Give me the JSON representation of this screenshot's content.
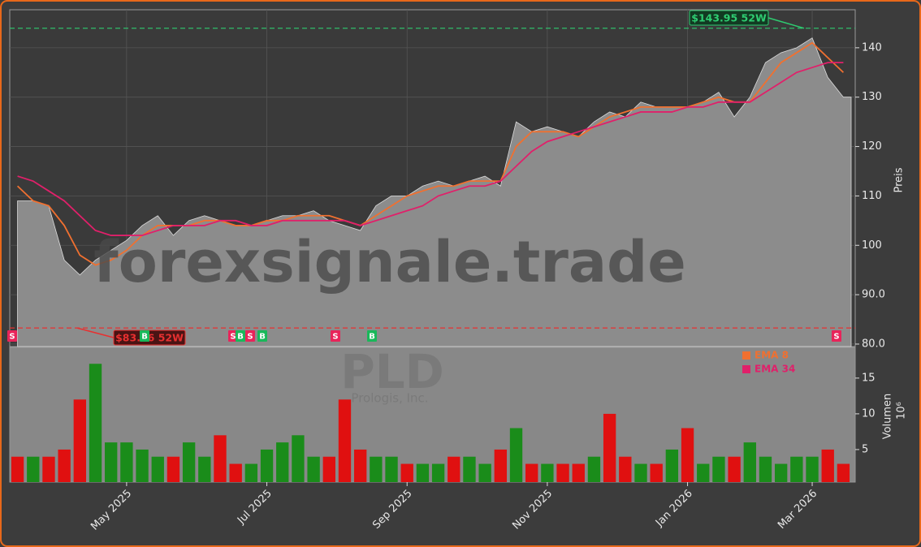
{
  "chart_data": [
    {
      "type": "area",
      "watermark": "forexsignale.trade",
      "y_label": "Preis",
      "ylim": [
        79.5,
        147.7
      ],
      "yticks": [
        {
          "value": 80,
          "label": "80.0"
        },
        {
          "value": 90,
          "label": "90.0"
        },
        100,
        110,
        120,
        130,
        140
      ],
      "grid": true,
      "series": [
        {
          "color": "#8c8c8c",
          "values": [
            109,
            109,
            108,
            97,
            94,
            97,
            99,
            101,
            104,
            106,
            102,
            105,
            106,
            105,
            104,
            104,
            105,
            106,
            106,
            107,
            105,
            104,
            103,
            108,
            110,
            110,
            112,
            113,
            112,
            113,
            114,
            112,
            125,
            123,
            124,
            123,
            122,
            125,
            127,
            126,
            129,
            128,
            128,
            128,
            129,
            131,
            126,
            130,
            137,
            139,
            140,
            142,
            134,
            130
          ]
        },
        {
          "name": "EMA 8",
          "color": "#f07030",
          "values": [
            112,
            109,
            108,
            104,
            98,
            96,
            97,
            99,
            102,
            104,
            104,
            104,
            105,
            105,
            104,
            104,
            105,
            105,
            106,
            106,
            106,
            105,
            104,
            106,
            108,
            110,
            111,
            112,
            112,
            113,
            113,
            113,
            120,
            123,
            123,
            123,
            122,
            124,
            126,
            127,
            128,
            128,
            128,
            128,
            129,
            130,
            129,
            129,
            133,
            137,
            139,
            141,
            138,
            135
          ]
        },
        {
          "name": "EMA 34",
          "color": "#e0206a",
          "values": [
            114,
            113,
            111,
            109,
            106,
            103,
            102,
            102,
            102,
            103,
            104,
            104,
            104,
            105,
            105,
            104,
            104,
            105,
            105,
            105,
            105,
            105,
            104,
            105,
            106,
            107,
            108,
            110,
            111,
            112,
            112,
            113,
            116,
            119,
            121,
            122,
            123,
            124,
            125,
            126,
            127,
            127,
            127,
            128,
            128,
            129,
            129,
            129,
            131,
            133,
            135,
            136,
            137,
            137
          ]
        }
      ],
      "annotations": [
        {
          "text": "$143.95 52W",
          "value": 143.95,
          "color": "#2ecc71"
        },
        {
          "text": "$83.26 52W",
          "value": 83.26,
          "color": "#e83030"
        }
      ],
      "signals": [
        "S",
        "B",
        "S",
        "B",
        "S",
        "B",
        "S",
        "B",
        "S"
      ]
    },
    {
      "type": "bar",
      "watermark": "PLD",
      "subtitle": "Prologis, Inc.",
      "y_label": "Volumen",
      "y_unit": "10⁶",
      "ylim": [
        0.45,
        19.3
      ],
      "yticks": [
        5,
        10,
        15
      ],
      "categories": [
        null,
        null,
        null,
        null,
        null,
        null,
        null,
        "May 2025",
        null,
        null,
        null,
        null,
        null,
        null,
        null,
        null,
        "Jul 2025",
        null,
        null,
        null,
        null,
        null,
        null,
        null,
        null,
        "Sep 2025",
        null,
        null,
        null,
        null,
        null,
        null,
        null,
        null,
        "Nov 2025",
        null,
        null,
        null,
        null,
        null,
        null,
        null,
        null,
        "Jan 2026",
        null,
        null,
        null,
        null,
        null,
        null,
        null,
        "Mar 2026",
        null,
        null
      ],
      "values": [
        4,
        4,
        4,
        5,
        12,
        17,
        6,
        6,
        5,
        4,
        4,
        6,
        4,
        7,
        3,
        3,
        5,
        6,
        7,
        4,
        4,
        12,
        5,
        4,
        4,
        3,
        3,
        3,
        4,
        4,
        3,
        5,
        8,
        3,
        3,
        3,
        3,
        4,
        10,
        4,
        3,
        3,
        5,
        8,
        3,
        4,
        4,
        6,
        4,
        3,
        4,
        4,
        5,
        3
      ],
      "colors": [
        "#e01010",
        "#1a8c1a",
        "#e01010",
        "#e01010",
        "#e01010",
        "#1a8c1a",
        "#1a8c1a",
        "#1a8c1a",
        "#1a8c1a",
        "#1a8c1a",
        "#e01010",
        "#1a8c1a",
        "#1a8c1a",
        "#e01010",
        "#e01010",
        "#1a8c1a",
        "#1a8c1a",
        "#1a8c1a",
        "#1a8c1a",
        "#1a8c1a",
        "#e01010",
        "#e01010",
        "#e01010",
        "#1a8c1a",
        "#1a8c1a",
        "#e01010",
        "#1a8c1a",
        "#1a8c1a",
        "#e01010",
        "#1a8c1a",
        "#1a8c1a",
        "#e01010",
        "#1a8c1a",
        "#e01010",
        "#1a8c1a",
        "#e01010",
        "#e01010",
        "#1a8c1a",
        "#e01010",
        "#e01010",
        "#1a8c1a",
        "#e01010",
        "#1a8c1a",
        "#e01010",
        "#1a8c1a",
        "#1a8c1a",
        "#e01010",
        "#1a8c1a",
        "#1a8c1a",
        "#1a8c1a",
        "#1a8c1a",
        "#1a8c1a",
        "#e01010",
        "#e01010"
      ]
    }
  ]
}
